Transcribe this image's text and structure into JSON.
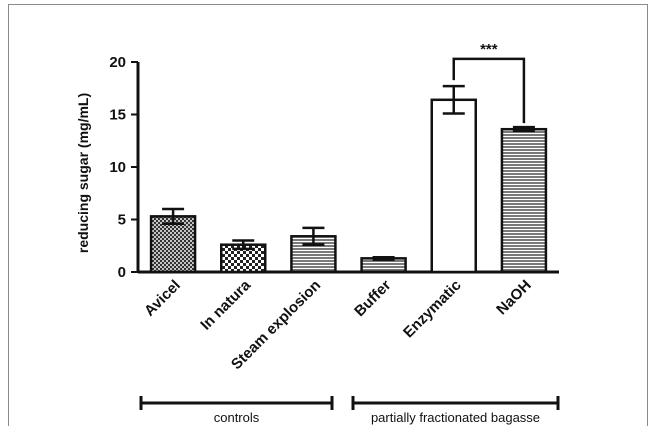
{
  "chart_data": {
    "type": "bar",
    "title": "",
    "xlabel": "",
    "ylabel": "reducing sugar (mg/mL)",
    "ylim": [
      0,
      20
    ],
    "yticks": [
      0,
      5,
      10,
      15,
      20
    ],
    "grid": false,
    "categories": [
      "Avicel",
      "In natura",
      "Steam explosion",
      "Buffer",
      "Enzymatic",
      "NaOH"
    ],
    "values": [
      5.3,
      2.6,
      3.4,
      1.3,
      16.4,
      13.6
    ],
    "errors": [
      0.7,
      0.4,
      0.8,
      0.1,
      1.3,
      0.2
    ],
    "fill_patterns": [
      "crosshatch",
      "checker",
      "horizontal-lines",
      "horizontal-lines",
      "white",
      "horizontal-lines"
    ],
    "significance": {
      "between": [
        "Enzymatic",
        "NaOH"
      ],
      "label": "***"
    },
    "groups": [
      {
        "label": "controls",
        "categories": [
          "Avicel",
          "In natura",
          "Steam explosion"
        ]
      },
      {
        "label": "partially fractionated bagasse",
        "categories": [
          "Buffer",
          "Enzymatic",
          "NaOH"
        ]
      }
    ]
  }
}
